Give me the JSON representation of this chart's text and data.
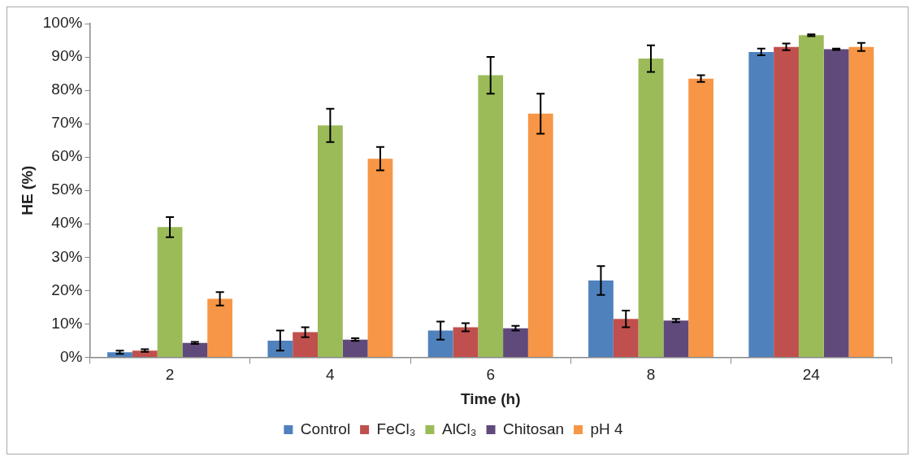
{
  "chart_data": {
    "type": "bar",
    "xlabel": "Time (h)",
    "ylabel": "HE (%)",
    "categories": [
      "2",
      "4",
      "6",
      "8",
      "24"
    ],
    "series": [
      {
        "name": "Control",
        "color": "#4f81bd",
        "values": [
          1.5,
          5,
          8,
          23,
          91.5
        ],
        "errors": [
          0.5,
          3,
          2.7,
          4.3,
          1
        ]
      },
      {
        "name": "FeCl₃",
        "color": "#c0504d",
        "values": [
          2,
          7.5,
          9,
          11.5,
          93
        ],
        "errors": [
          0.4,
          1.5,
          1.2,
          2.5,
          1
        ]
      },
      {
        "name": "AlCl₃",
        "color": "#9bbb59",
        "values": [
          39,
          69.5,
          84.5,
          89.5,
          96.5
        ],
        "errors": [
          3,
          5,
          5.5,
          4,
          0.3
        ]
      },
      {
        "name": "Chitosan",
        "color": "#604a7b",
        "values": [
          4.3,
          5.3,
          8.7,
          11,
          92.3
        ],
        "errors": [
          0.3,
          0.4,
          0.7,
          0.5,
          0.2
        ]
      },
      {
        "name": "pH 4",
        "color": "#f79646",
        "values": [
          17.5,
          59.5,
          73,
          83.5,
          93
        ],
        "errors": [
          2,
          3.5,
          6,
          1,
          1.2
        ]
      }
    ],
    "ylim": [
      0,
      100
    ],
    "yticks": [
      {
        "value": 0,
        "label": "0%"
      },
      {
        "value": 10,
        "label": "10%"
      },
      {
        "value": 20,
        "label": "20%"
      },
      {
        "value": 30,
        "label": "30%"
      },
      {
        "value": 40,
        "label": "40%"
      },
      {
        "value": 50,
        "label": "50%"
      },
      {
        "value": 60,
        "label": "60%"
      },
      {
        "value": 70,
        "label": "70%"
      },
      {
        "value": 80,
        "label": "80%"
      },
      {
        "value": 90,
        "label": "90%"
      },
      {
        "value": 100,
        "label": "100%"
      }
    ],
    "grid": false,
    "legend": "bottom"
  }
}
